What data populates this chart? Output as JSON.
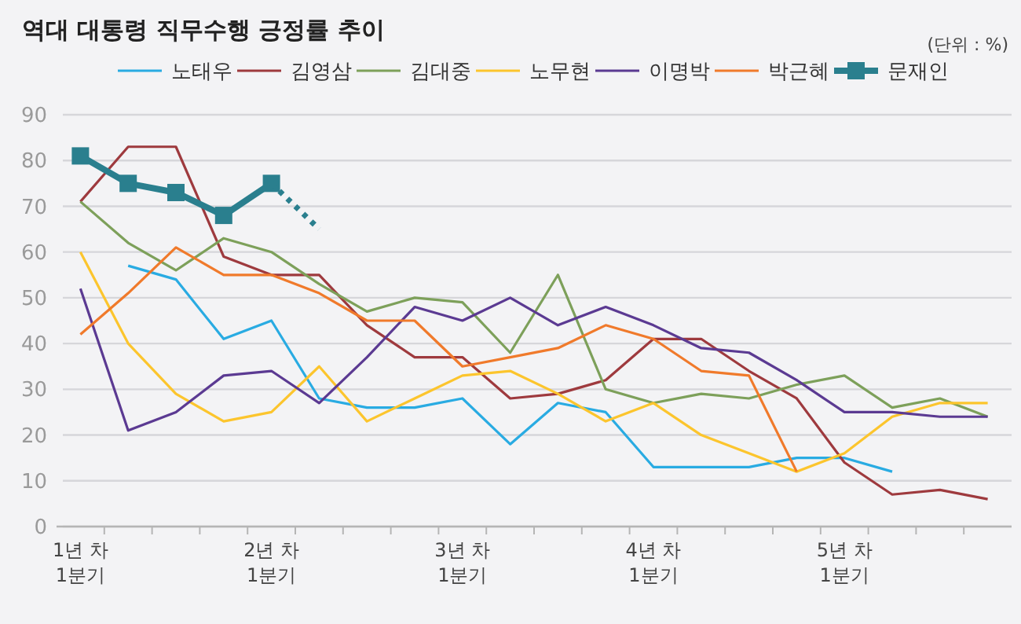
{
  "chart_data": {
    "type": "line",
    "title": "역대 대통령 직무수행 긍정률 추이",
    "annotations": [
      "(단위 : %)"
    ],
    "categories": [
      "1년 차\n1분기",
      null,
      null,
      null,
      "2년 차\n1분기",
      null,
      null,
      null,
      "3년 차\n1분기",
      null,
      null,
      null,
      "4년 차\n1분기",
      null,
      null,
      null,
      "5년 차\n1분기",
      null,
      null,
      null
    ],
    "ylim": [
      0,
      90
    ],
    "yticks": [
      0,
      10,
      20,
      30,
      40,
      50,
      60,
      70,
      80,
      90
    ],
    "grid": "y",
    "legend": "top",
    "series": [
      {
        "name": "노태우",
        "color": "#29abe2",
        "marker": "none",
        "values": [
          null,
          57,
          54,
          41,
          45,
          28,
          26,
          26,
          28,
          18,
          27,
          25,
          13,
          13,
          13,
          15,
          15,
          12,
          null,
          null
        ]
      },
      {
        "name": "김영삼",
        "color": "#9e3a3e",
        "marker": "none",
        "values": [
          71,
          83,
          83,
          59,
          55,
          55,
          44,
          37,
          37,
          28,
          29,
          32,
          41,
          41,
          34,
          28,
          14,
          7,
          8,
          6
        ]
      },
      {
        "name": "김대중",
        "color": "#7da05a",
        "marker": "none",
        "values": [
          71,
          62,
          56,
          63,
          60,
          53,
          47,
          50,
          49,
          38,
          55,
          30,
          27,
          29,
          28,
          31,
          33,
          26,
          28,
          24
        ]
      },
      {
        "name": "노무현",
        "color": "#fcc52d",
        "marker": "none",
        "values": [
          60,
          40,
          29,
          23,
          25,
          35,
          23,
          28,
          33,
          34,
          29,
          23,
          27,
          20,
          16,
          12,
          16,
          24,
          27,
          27
        ]
      },
      {
        "name": "이명박",
        "color": "#5b3a92",
        "marker": "none",
        "values": [
          52,
          21,
          25,
          33,
          34,
          27,
          37,
          48,
          45,
          50,
          44,
          48,
          44,
          39,
          38,
          32,
          25,
          25,
          24,
          24
        ]
      },
      {
        "name": "박근혜",
        "color": "#f07a2b",
        "marker": "none",
        "values": [
          42,
          51,
          61,
          55,
          55,
          51,
          45,
          45,
          35,
          37,
          39,
          44,
          41,
          34,
          33,
          12,
          null,
          null,
          null,
          null
        ]
      },
      {
        "name": "문재인",
        "color": "#2a7f8e",
        "marker": "square",
        "values": [
          81,
          75,
          73,
          68,
          75,
          null,
          null,
          null,
          null,
          null,
          null,
          null,
          null,
          null,
          null,
          null,
          null,
          null,
          null,
          null
        ]
      },
      {
        "color": "#2a7f8e",
        "marker": "none",
        "line_style": "dotted",
        "values": [
          null,
          null,
          null,
          null,
          75,
          65,
          null,
          null,
          null,
          null,
          null,
          null,
          null,
          null,
          null,
          null,
          null,
          null,
          null,
          null
        ]
      }
    ]
  }
}
